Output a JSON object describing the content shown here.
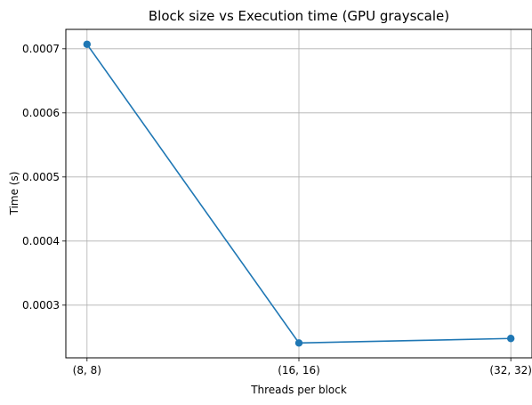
{
  "chart_data": {
    "type": "line",
    "title": "Block size vs Execution time (GPU grayscale)",
    "xlabel": "Threads per block",
    "ylabel": "Time (s)",
    "categories": [
      "(8, 8)",
      "(16, 16)",
      "(32, 32)"
    ],
    "series": [
      {
        "values": [
          0.000707,
          0.000241,
          0.000248
        ],
        "color": "#1f77b4",
        "marker": "circle"
      }
    ],
    "yticks": [
      0.0003,
      0.0004,
      0.0005,
      0.0006,
      0.0007
    ],
    "ytick_labels": [
      "0.0003",
      "0.0004",
      "0.0005",
      "0.0006",
      "0.0007"
    ],
    "ylim": [
      0.0002178,
      0.0007303
    ],
    "grid": true
  }
}
